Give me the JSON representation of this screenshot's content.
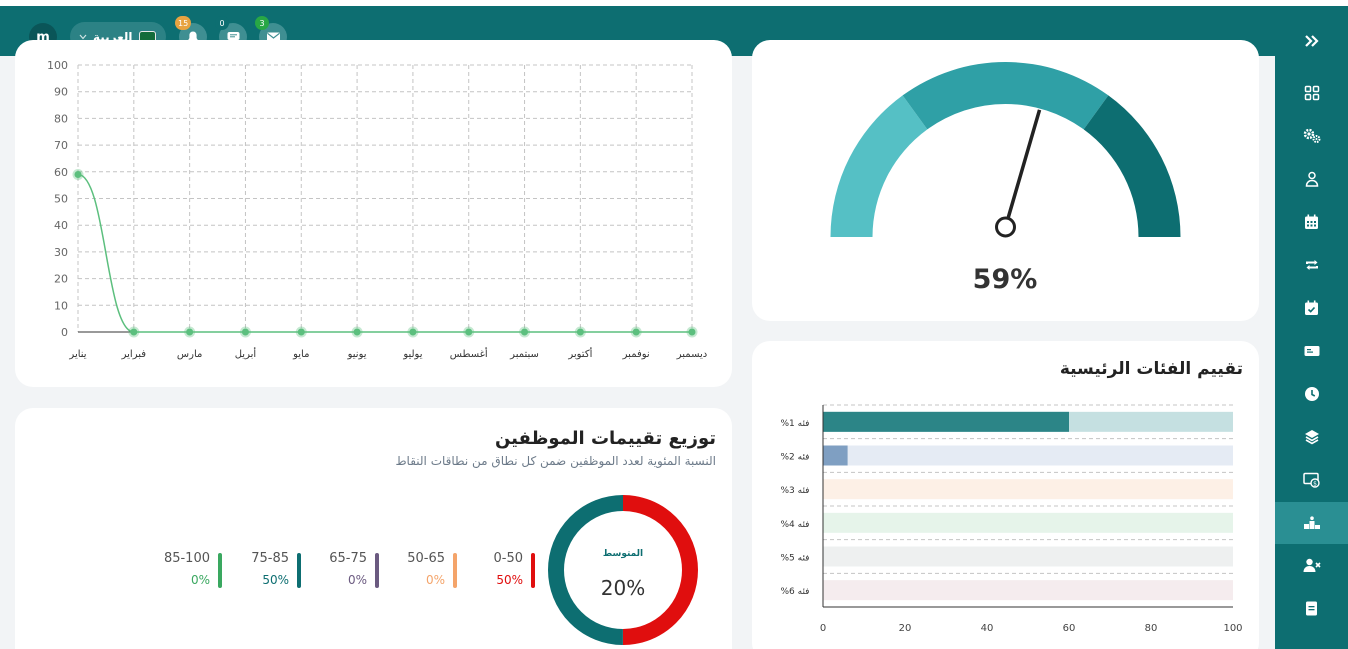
{
  "header": {
    "user_initial": "m",
    "language": "العربية",
    "notifications": [
      {
        "icon": "bell-icon",
        "count": "15",
        "color": "#e7a341"
      },
      {
        "icon": "chat-icon",
        "count": "0",
        "color": "#0d6e71"
      },
      {
        "icon": "mail-icon",
        "count": "3",
        "color": "#28a745"
      }
    ]
  },
  "sidebar": {
    "items": [
      {
        "icon": "chevrons-icon"
      },
      {
        "icon": "grid-icon"
      },
      {
        "icon": "gears-icon"
      },
      {
        "icon": "user-icon"
      },
      {
        "icon": "calendar-icon"
      },
      {
        "icon": "repeat-icon"
      },
      {
        "icon": "calendar-check-icon"
      },
      {
        "icon": "card-icon"
      },
      {
        "icon": "clock-icon"
      },
      {
        "icon": "layers-icon"
      },
      {
        "icon": "money-icon"
      },
      {
        "icon": "ranking-icon",
        "active": true
      },
      {
        "icon": "user-remove-icon"
      },
      {
        "icon": "document-icon"
      }
    ]
  },
  "gauge": {
    "percent_label": "59%",
    "value": 59,
    "colors": [
      "#55c0c5",
      "#2fa0a6",
      "#0d6e71"
    ]
  },
  "line_chart": {
    "chart_data": {
      "type": "line",
      "categories": [
        "يناير",
        "فبراير",
        "مارس",
        "أبريل",
        "مايو",
        "يونيو",
        "يوليو",
        "أغسطس",
        "سبتمبر",
        "أكتوبر",
        "نوفمبر",
        "ديسمبر"
      ],
      "yticks": [
        "0",
        "10",
        "20",
        "30",
        "40",
        "50",
        "60",
        "70",
        "80",
        "90",
        "100"
      ],
      "ylim": [
        0,
        100
      ],
      "values": [
        59,
        0,
        0,
        0,
        0,
        0,
        0,
        0,
        0,
        0,
        0,
        0
      ],
      "grid": true,
      "color": "#5cbf7e"
    }
  },
  "categories_card": {
    "title": "تقييم الفئات الرئيسية",
    "chart_data": {
      "type": "bar",
      "orientation": "horizontal",
      "categories": [
        "فئه 1%",
        "فئه 2%",
        "فئه 3%",
        "فئه 4%",
        "فئه 5%",
        "فئه 6%"
      ],
      "values": [
        60,
        6,
        0,
        0,
        0,
        0
      ],
      "xlim": [
        0,
        100
      ],
      "xticks": [
        "0",
        "20",
        "40",
        "60",
        "80",
        "100"
      ],
      "bar_colors": [
        "#2c8587",
        "#7f9fc2",
        "#f4a46a",
        "#5cbf7e",
        "#9aa9ad",
        "#b98a98"
      ],
      "track_colors": [
        "#c5e0e1",
        "#e5ebf4",
        "#fdf0e6",
        "#e6f4ea",
        "#eef0f0",
        "#f5ecee"
      ],
      "grid": true
    }
  },
  "distribution_card": {
    "title": "توزيع تقييمات الموظفين",
    "subtitle": "النسبة المئوية لعدد الموظفين ضمن كل نطاق من نطاقات النقاط",
    "donut_label": "المتوسط",
    "donut_value": "20%",
    "chart_data": {
      "type": "pie",
      "values": [
        50,
        50
      ],
      "colors": [
        "#e00e0e",
        "#0d6e71"
      ]
    },
    "ranges": [
      {
        "label": "0-50",
        "value": "50%",
        "color": "#e00e0e"
      },
      {
        "label": "50-65",
        "value": "0%",
        "color": "#f4a46a"
      },
      {
        "label": "65-75",
        "value": "0%",
        "color": "#6b5a80"
      },
      {
        "label": "75-85",
        "value": "50%",
        "color": "#0d6e71"
      },
      {
        "label": "85-100",
        "value": "0%",
        "color": "#3aa860"
      }
    ]
  }
}
